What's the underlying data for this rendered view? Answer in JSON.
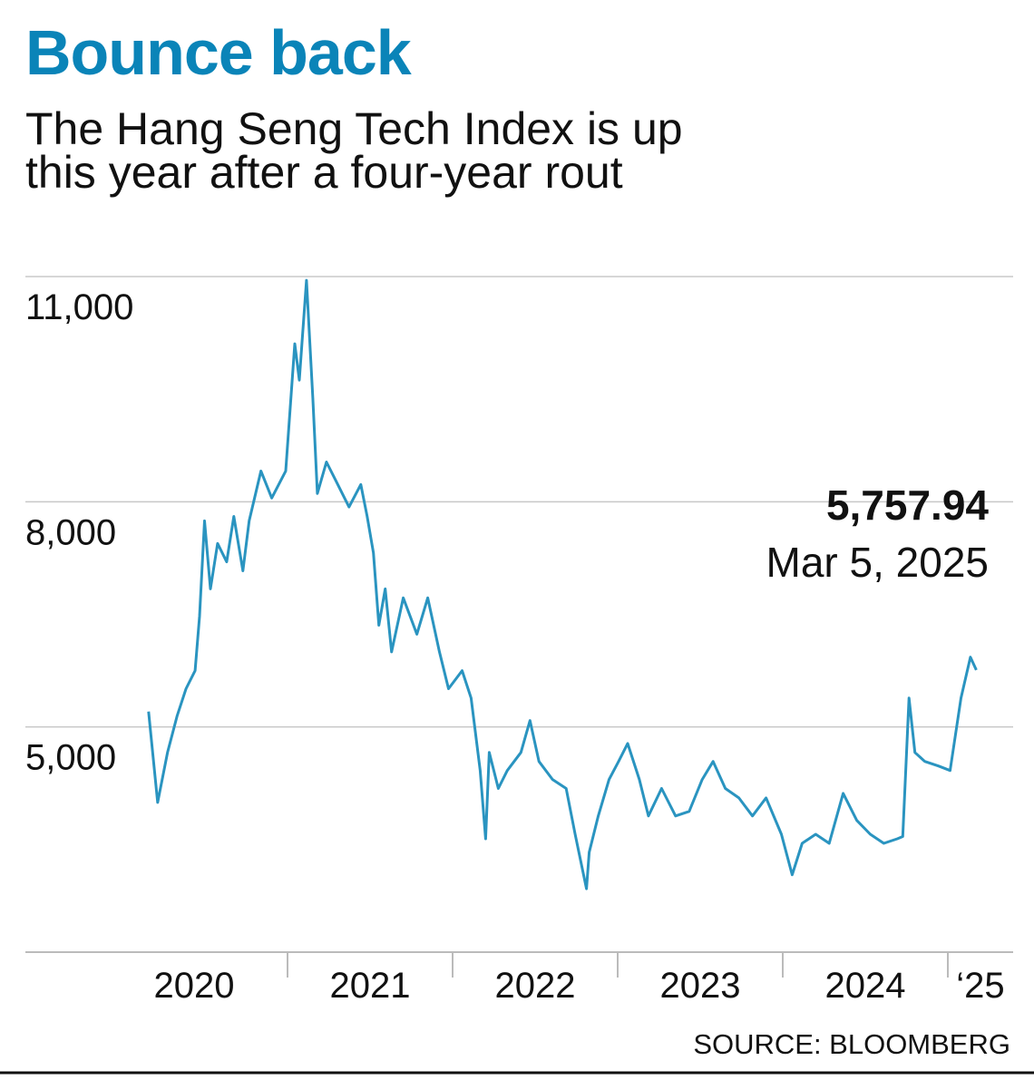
{
  "title": "Bounce back",
  "subtitle_lines": [
    "The Hang Seng Tech Index is up",
    "this year after a four-year rout"
  ],
  "source": "SOURCE: BLOOMBERG",
  "annotation": {
    "value": "5,757.94",
    "date": "Mar 5, 2025"
  },
  "colors": {
    "title": "#0a84b8",
    "line": "#2a94c0",
    "grid": "#c8c8c8"
  },
  "chart_data": {
    "type": "line",
    "ylim": [
      2000,
      11000
    ],
    "yticks": [
      {
        "value": 11000,
        "label": "11,000"
      },
      {
        "value": 8000,
        "label": "8,000"
      },
      {
        "value": 5000,
        "label": "5,000"
      }
    ],
    "xtick_labels": [
      {
        "year": 2020,
        "label": "2020"
      },
      {
        "year": 2021,
        "label": "2021"
      },
      {
        "year": 2022,
        "label": "2022"
      },
      {
        "year": 2023,
        "label": "2023"
      },
      {
        "year": 2024,
        "label": "2024"
      },
      {
        "year": 2025,
        "label": "‘25"
      }
    ],
    "grid": true,
    "series": [
      {
        "points": [
          [
            "2020-02-28",
            5205
          ],
          [
            "2020-03-19",
            3995
          ],
          [
            "2020-04-10",
            4660
          ],
          [
            "2020-05-01",
            5145
          ],
          [
            "2020-05-21",
            5510
          ],
          [
            "2020-06-10",
            5750
          ],
          [
            "2020-06-20",
            6475
          ],
          [
            "2020-07-01",
            7745
          ],
          [
            "2020-07-14",
            6840
          ],
          [
            "2020-07-30",
            7445
          ],
          [
            "2020-08-19",
            7200
          ],
          [
            "2020-09-04",
            7805
          ],
          [
            "2020-09-24",
            7080
          ],
          [
            "2020-10-08",
            7745
          ],
          [
            "2020-11-03",
            8410
          ],
          [
            "2020-11-27",
            8050
          ],
          [
            "2020-12-28",
            8410
          ],
          [
            "2021-01-17",
            10105
          ],
          [
            "2021-01-27",
            9620
          ],
          [
            "2021-02-12",
            10950
          ],
          [
            "2021-02-26",
            9380
          ],
          [
            "2021-03-08",
            8110
          ],
          [
            "2021-03-28",
            8530
          ],
          [
            "2021-04-17",
            8290
          ],
          [
            "2021-05-17",
            7930
          ],
          [
            "2021-06-12",
            8230
          ],
          [
            "2021-06-26",
            7805
          ],
          [
            "2021-07-10",
            7320
          ],
          [
            "2021-07-22",
            6355
          ],
          [
            "2021-08-05",
            6840
          ],
          [
            "2021-08-19",
            6000
          ],
          [
            "2021-09-14",
            6720
          ],
          [
            "2021-10-14",
            6235
          ],
          [
            "2021-11-07",
            6720
          ],
          [
            "2021-12-03",
            6000
          ],
          [
            "2021-12-23",
            5510
          ],
          [
            "2022-01-22",
            5750
          ],
          [
            "2022-02-11",
            5385
          ],
          [
            "2022-03-03",
            4420
          ],
          [
            "2022-03-15",
            3510
          ],
          [
            "2022-03-23",
            4660
          ],
          [
            "2022-04-12",
            4180
          ],
          [
            "2022-05-02",
            4420
          ],
          [
            "2022-06-01",
            4660
          ],
          [
            "2022-06-21",
            5085
          ],
          [
            "2022-07-11",
            4540
          ],
          [
            "2022-08-10",
            4300
          ],
          [
            "2022-09-09",
            4180
          ],
          [
            "2022-09-29",
            3570
          ],
          [
            "2022-10-24",
            2845
          ],
          [
            "2022-10-30",
            3330
          ],
          [
            "2022-11-19",
            3815
          ],
          [
            "2022-12-13",
            4300
          ],
          [
            "2023-01-03",
            4540
          ],
          [
            "2023-01-23",
            4780
          ],
          [
            "2023-02-18",
            4300
          ],
          [
            "2023-03-10",
            3815
          ],
          [
            "2023-04-08",
            4180
          ],
          [
            "2023-05-09",
            3815
          ],
          [
            "2023-06-08",
            3875
          ],
          [
            "2023-07-07",
            4300
          ],
          [
            "2023-07-31",
            4540
          ],
          [
            "2023-08-27",
            4180
          ],
          [
            "2023-09-26",
            4055
          ],
          [
            "2023-10-26",
            3815
          ],
          [
            "2023-11-25",
            4055
          ],
          [
            "2023-12-29",
            3570
          ],
          [
            "2024-01-22",
            3030
          ],
          [
            "2024-02-13",
            3450
          ],
          [
            "2024-03-14",
            3570
          ],
          [
            "2024-04-13",
            3450
          ],
          [
            "2024-05-14",
            4115
          ],
          [
            "2024-06-13",
            3755
          ],
          [
            "2024-07-13",
            3570
          ],
          [
            "2024-08-12",
            3450
          ],
          [
            "2024-09-11",
            3510
          ],
          [
            "2024-09-23",
            3540
          ],
          [
            "2024-10-07",
            5385
          ],
          [
            "2024-10-20",
            4660
          ],
          [
            "2024-11-11",
            4540
          ],
          [
            "2024-12-11",
            4480
          ],
          [
            "2025-01-06",
            4420
          ],
          [
            "2025-01-30",
            5385
          ],
          [
            "2025-02-20",
            5930
          ],
          [
            "2025-03-05",
            5757.94
          ]
        ]
      }
    ]
  }
}
